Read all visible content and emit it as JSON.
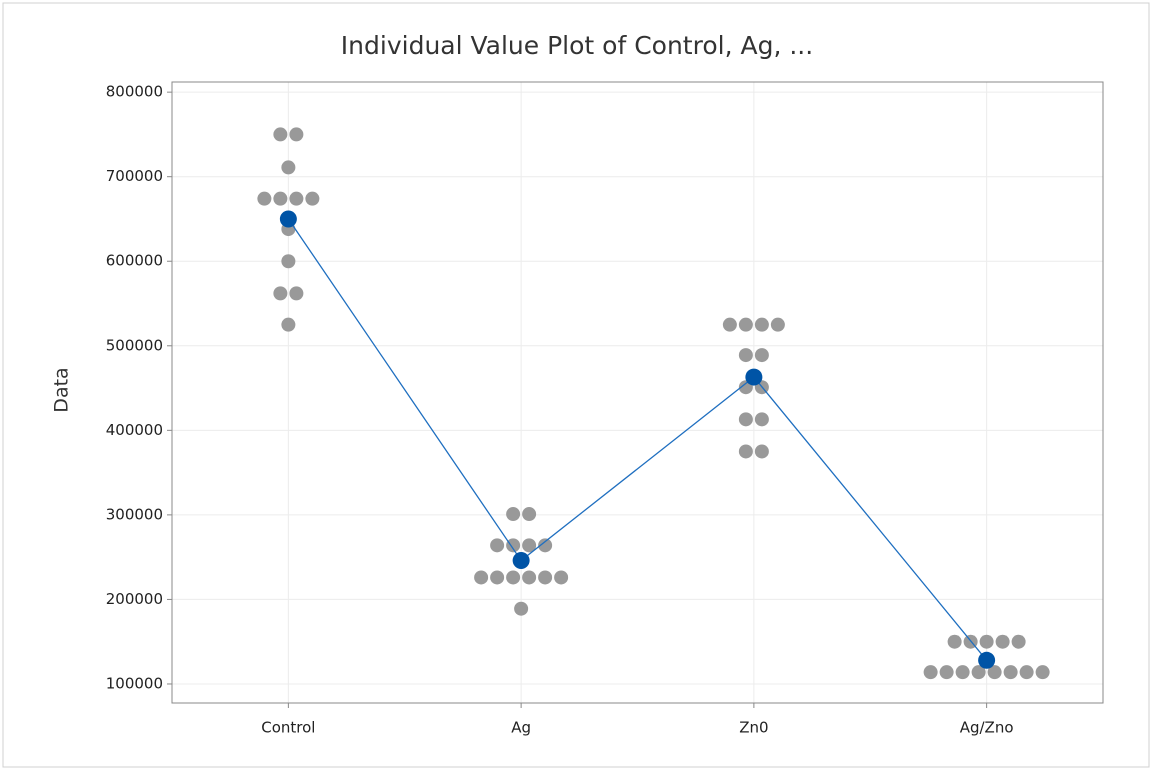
{
  "chart_data": {
    "type": "individual value",
    "title": "Individual Value Plot of Control, Ag, ...",
    "y_label": "Data",
    "categories": [
      "Control",
      "Ag",
      "Zn0",
      "Ag/Zno"
    ],
    "points": [
      [
        750000,
        750000,
        711000,
        674000,
        674000,
        674000,
        674000,
        638000,
        600000,
        562000,
        562000,
        525000
      ],
      [
        301000,
        301000,
        264000,
        264000,
        264000,
        264000,
        226000,
        226000,
        226000,
        226000,
        226000,
        226000,
        189000
      ],
      [
        525000,
        525000,
        525000,
        525000,
        489000,
        489000,
        451000,
        451000,
        413000,
        413000,
        375000,
        375000
      ],
      [
        150000,
        150000,
        150000,
        150000,
        150000,
        114000,
        114000,
        114000,
        114000,
        114000,
        114000,
        114000,
        114000
      ]
    ],
    "means": [
      650000,
      246000,
      463000,
      128000
    ],
    "point_color": "#999999",
    "mean_color": "#0054a6",
    "line_color": "#1f6fc0",
    "ylim": [
      77500,
      812000
    ],
    "yticks": [
      100000,
      200000,
      300000,
      400000,
      500000,
      600000,
      700000,
      800000
    ],
    "grid": true
  }
}
